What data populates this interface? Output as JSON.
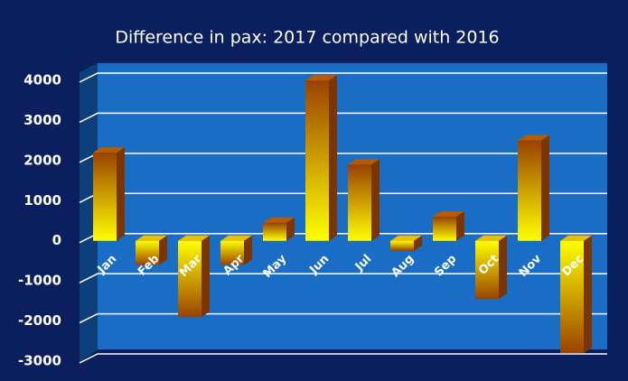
{
  "chart_data": {
    "type": "bar",
    "title": "Difference in pax: 2017 compared with 2016",
    "categories": [
      "Jan",
      "Feb",
      "Mar",
      "Apr",
      "May",
      "Jun",
      "Jul",
      "Aug",
      "Sep",
      "Oct",
      "Nov",
      "Dec"
    ],
    "values": [
      2200,
      -600,
      -1900,
      -600,
      450,
      4000,
      1900,
      -250,
      600,
      -1450,
      2500,
      -2800
    ],
    "ylim": [
      -3000,
      4000
    ],
    "yticks": [
      -3000,
      -2000,
      -1000,
      0,
      1000,
      2000,
      3000,
      4000
    ],
    "grid": true
  }
}
